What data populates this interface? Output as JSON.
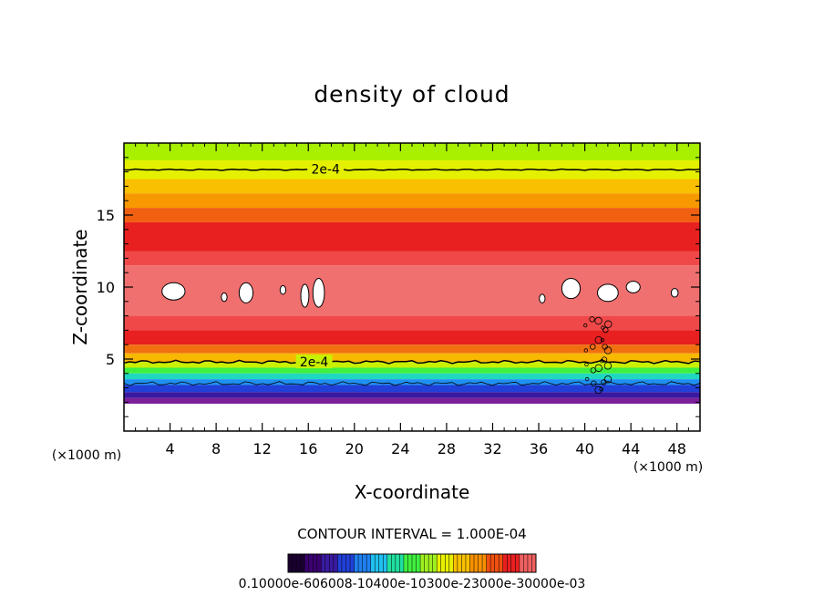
{
  "chart_data": {
    "type": "heatmap",
    "title": "density of cloud",
    "xlabel": "X-coordinate",
    "ylabel": "Z-coordinate",
    "x_unit_left": "(×1000 m)",
    "x_unit_right": "(×1000 m)",
    "xlim": [
      0,
      50
    ],
    "ylim": [
      0,
      20
    ],
    "xticks": [
      4,
      8,
      12,
      16,
      20,
      24,
      28,
      32,
      36,
      40,
      44,
      48
    ],
    "yticks": [
      5,
      10,
      15
    ],
    "contour_labels": [
      {
        "text": "2e-4",
        "x": 17.5,
        "z": 18.2
      },
      {
        "text": "2e-4",
        "x": 16.5,
        "z": 4.8
      }
    ],
    "contour_interval_text": "CONTOUR INTERVAL = 1.000E-04",
    "colorbar_labels_text": "0.10000e-606008-10400e-10300e-23000e-30000e-03",
    "colorbar_colors": [
      "#1a0030",
      "#3a0070",
      "#3a1aa0",
      "#2040d8",
      "#2080f0",
      "#20c0f0",
      "#20e0a0",
      "#40f040",
      "#a0f020",
      "#e8f000",
      "#f8c000",
      "#f89000",
      "#f05010",
      "#e82020",
      "#f06060"
    ],
    "bands": [
      {
        "z0": 18.8,
        "z1": 20,
        "color": "#a8f000"
      },
      {
        "z0": 17.5,
        "z1": 18.8,
        "color": "#e4f000"
      },
      {
        "z0": 16.5,
        "z1": 17.5,
        "color": "#f8c000"
      },
      {
        "z0": 15.5,
        "z1": 16.5,
        "color": "#f89800"
      },
      {
        "z0": 14.5,
        "z1": 15.5,
        "color": "#f06010"
      },
      {
        "z0": 12.5,
        "z1": 14.5,
        "color": "#e82020"
      },
      {
        "z0": 11.5,
        "z1": 12.5,
        "color": "#f04848"
      },
      {
        "z0": 8.0,
        "z1": 11.5,
        "color": "#f07070"
      },
      {
        "z0": 7.0,
        "z1": 8.0,
        "color": "#f04848"
      },
      {
        "z0": 6.0,
        "z1": 7.0,
        "color": "#e82020"
      },
      {
        "z0": 5.4,
        "z1": 6.0,
        "color": "#f07010"
      },
      {
        "z0": 4.8,
        "z1": 5.4,
        "color": "#f8b800"
      },
      {
        "z0": 4.4,
        "z1": 4.8,
        "color": "#c8f000"
      },
      {
        "z0": 4.0,
        "z1": 4.4,
        "color": "#40f040"
      },
      {
        "z0": 3.6,
        "z1": 4.0,
        "color": "#20d8c0"
      },
      {
        "z0": 3.2,
        "z1": 3.6,
        "color": "#2090f0"
      },
      {
        "z0": 2.7,
        "z1": 3.2,
        "color": "#2040d8"
      },
      {
        "z0": 2.3,
        "z1": 2.7,
        "color": "#3a1aa0"
      },
      {
        "z0": 1.9,
        "z1": 2.3,
        "color": "#7a2098"
      }
    ],
    "white_patches": [
      {
        "x": 4.3,
        "z": 9.7,
        "rx": 1.0,
        "rz": 0.6
      },
      {
        "x": 10.6,
        "z": 9.6,
        "rx": 0.6,
        "rz": 0.7
      },
      {
        "x": 8.7,
        "z": 9.3,
        "rx": 0.25,
        "rz": 0.3
      },
      {
        "x": 15.7,
        "z": 9.4,
        "rx": 0.35,
        "rz": 0.8
      },
      {
        "x": 16.9,
        "z": 9.6,
        "rx": 0.5,
        "rz": 1.0
      },
      {
        "x": 13.8,
        "z": 9.8,
        "rx": 0.25,
        "rz": 0.3
      },
      {
        "x": 38.8,
        "z": 9.9,
        "rx": 0.8,
        "rz": 0.7
      },
      {
        "x": 36.3,
        "z": 9.2,
        "rx": 0.25,
        "rz": 0.3
      },
      {
        "x": 42.0,
        "z": 9.6,
        "rx": 0.9,
        "rz": 0.6
      },
      {
        "x": 44.2,
        "z": 10.0,
        "rx": 0.6,
        "rz": 0.4
      },
      {
        "x": 47.8,
        "z": 9.6,
        "rx": 0.3,
        "rz": 0.3
      }
    ]
  }
}
